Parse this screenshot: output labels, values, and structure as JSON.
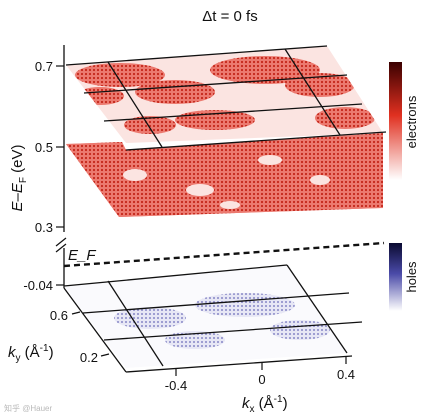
{
  "chart_data": {
    "type": "heatmap",
    "title": "Δt = 0 fs",
    "xlabel": "k_x (Å^-1)",
    "ylabel": "k_y (Å^-1)",
    "zlabel": "E–E_F (eV)",
    "x_ticks": [
      "-0.4",
      "0",
      "0.4"
    ],
    "y_ticks": [
      "0.6",
      "0.2"
    ],
    "z_ticks_upper": [
      "0.7",
      "0.5",
      "0.3"
    ],
    "z_ticks_lower": [
      "-0.04"
    ],
    "fermi_label": "E_F",
    "series": [
      {
        "name": "electrons",
        "color": "#d42a1c",
        "energy_levels_eV": [
          0.7,
          0.5
        ]
      },
      {
        "name": "holes",
        "color": "#2a2a9a",
        "energy_levels_eV": [
          -0.04
        ]
      }
    ],
    "colorbars": [
      {
        "label": "electrons",
        "colors": [
          "#ffffff",
          "#e03020",
          "#3a0000"
        ]
      },
      {
        "label": "holes",
        "colors": [
          "#ffffff",
          "#4a4aa8",
          "#0a0a30"
        ]
      }
    ],
    "grid": true
  },
  "watermark": "知乎 @Hauer"
}
